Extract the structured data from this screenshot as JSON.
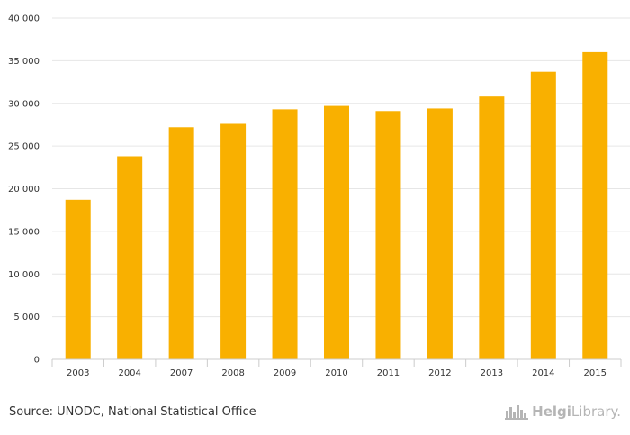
{
  "chart_data": {
    "type": "bar",
    "categories": [
      "2003",
      "2004",
      "2007",
      "2008",
      "2009",
      "2010",
      "2011",
      "2012",
      "2013",
      "2014",
      "2015"
    ],
    "values": [
      18700,
      23800,
      27200,
      27600,
      29300,
      29700,
      29100,
      29400,
      30800,
      33700,
      36000
    ],
    "ylim": [
      0,
      40000
    ],
    "yticks": [
      0,
      5000,
      10000,
      15000,
      20000,
      25000,
      30000,
      35000,
      40000
    ],
    "ytick_labels": [
      "0",
      "5 000",
      "10 000",
      "15 000",
      "20 000",
      "25 000",
      "30 000",
      "35 000",
      "40 000"
    ],
    "bar_color": "#f9b000",
    "grid": true,
    "legend": false
  },
  "footer": {
    "source": "Source: UNODC, National Statistical Office",
    "logo_bold": "Helgi",
    "logo_light": "Library."
  }
}
